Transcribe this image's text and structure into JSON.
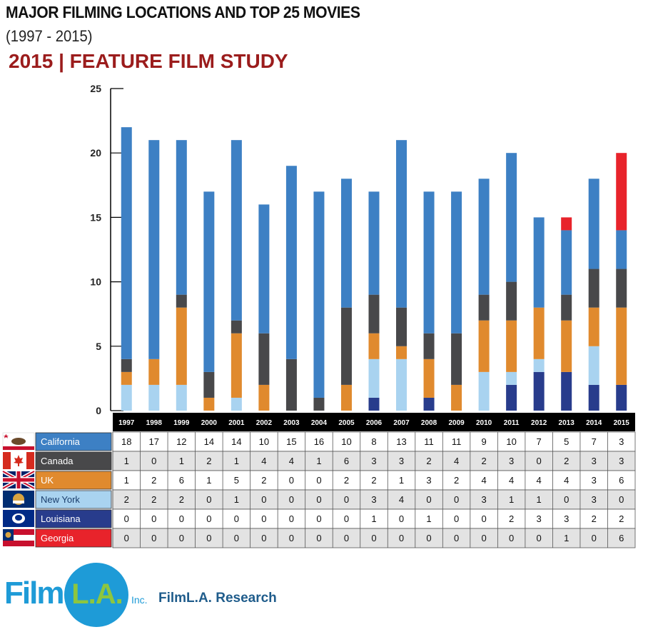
{
  "header": {
    "title": "MAJOR FILMING LOCATIONS AND TOP 25 MOVIES",
    "subtitle": "(1997 - 2015)",
    "study": "2015 | FEATURE FILM STUDY"
  },
  "footer": {
    "logo_film": "Film",
    "logo_la": "L.A.",
    "logo_inc": "Inc.",
    "research": "FilmL.A. Research"
  },
  "chart_data": {
    "type": "bar",
    "stacked": true,
    "ylim": [
      0,
      25
    ],
    "yticks": [
      0,
      5,
      10,
      15,
      20,
      25
    ],
    "categories": [
      "1997",
      "1998",
      "1999",
      "2000",
      "2001",
      "2002",
      "2003",
      "2004",
      "2005",
      "2006",
      "2007",
      "2008",
      "2009",
      "2010",
      "2011",
      "2012",
      "2013",
      "2014",
      "2015"
    ],
    "series": [
      {
        "name": "California",
        "color": "#3d80c4",
        "values": [
          18,
          17,
          12,
          14,
          14,
          10,
          15,
          16,
          10,
          8,
          13,
          11,
          11,
          9,
          10,
          7,
          5,
          7,
          3
        ]
      },
      {
        "name": "Canada",
        "color": "#48484a",
        "values": [
          1,
          0,
          1,
          2,
          1,
          4,
          4,
          1,
          6,
          3,
          3,
          2,
          4,
          2,
          3,
          0,
          2,
          3,
          3
        ]
      },
      {
        "name": "UK",
        "color": "#e08a2e",
        "values": [
          1,
          2,
          6,
          1,
          5,
          2,
          0,
          0,
          2,
          2,
          1,
          3,
          2,
          4,
          4,
          4,
          4,
          3,
          6
        ]
      },
      {
        "name": "New York",
        "color": "#a9d3f0",
        "values": [
          2,
          2,
          2,
          0,
          1,
          0,
          0,
          0,
          0,
          3,
          4,
          0,
          0,
          3,
          1,
          1,
          0,
          3,
          0
        ]
      },
      {
        "name": "Louisiana",
        "color": "#283c8c",
        "values": [
          0,
          0,
          0,
          0,
          0,
          0,
          0,
          0,
          0,
          1,
          0,
          1,
          0,
          0,
          2,
          3,
          3,
          2,
          2
        ]
      },
      {
        "name": "Georgia",
        "color": "#e8232b",
        "values": [
          0,
          0,
          0,
          0,
          0,
          0,
          0,
          0,
          0,
          0,
          0,
          0,
          0,
          0,
          0,
          0,
          1,
          0,
          6
        ]
      }
    ],
    "table": true,
    "legend": "table-left"
  }
}
